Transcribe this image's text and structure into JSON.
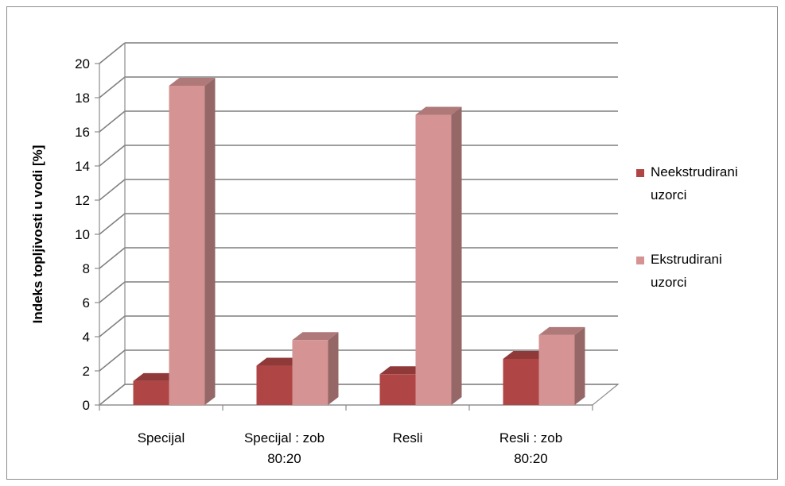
{
  "chart_data": {
    "type": "bar",
    "ylabel": "Indeks topljivosti u vodi [%]",
    "ylim": [
      0,
      20
    ],
    "yticks": [
      0,
      2,
      4,
      6,
      8,
      10,
      12,
      14,
      16,
      18,
      20
    ],
    "grid": true,
    "legend_position": "right",
    "categories": [
      [
        "Specijal"
      ],
      [
        "Specijal : zob",
        "80:20"
      ],
      [
        "Resli"
      ],
      [
        "Resli : zob",
        "80:20"
      ]
    ],
    "series": [
      {
        "name_lines": [
          "Neekstrudirani",
          "uzorci"
        ],
        "color": "#b04545",
        "values": [
          1.4,
          2.3,
          1.8,
          2.7
        ]
      },
      {
        "name_lines": [
          "Ekstrudirani",
          "uzorci"
        ],
        "color": "#d59393",
        "values": [
          18.7,
          3.8,
          17.0,
          4.1
        ]
      }
    ]
  }
}
